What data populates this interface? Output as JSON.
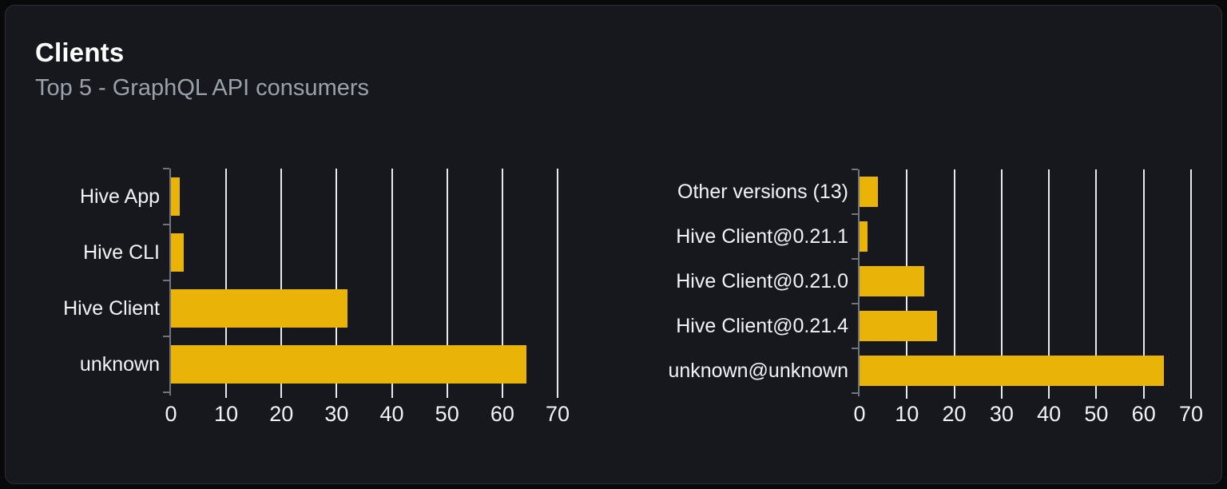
{
  "card": {
    "title": "Clients",
    "subtitle": "Top 5 - GraphQL API consumers"
  },
  "colors": {
    "bar": "#eab308",
    "grid": "#e8eaed",
    "axis": "#70747c",
    "card_bg": "#16181d",
    "card_border": "#2a2d33",
    "page_bg": "#09090b",
    "title": "#ffffff",
    "subtitle": "#9aa1ab",
    "axis_label": "#f2f3f5"
  },
  "chart_data": [
    {
      "type": "bar",
      "orientation": "horizontal",
      "categories": [
        "Hive App",
        "Hive CLI",
        "Hive Client",
        "unknown"
      ],
      "values": [
        1.6,
        2.3,
        31.9,
        64.3
      ],
      "xlim": [
        0,
        70
      ],
      "xticks": [
        0,
        10,
        20,
        30,
        40,
        50,
        60,
        70
      ],
      "grid": true,
      "legend": false
    },
    {
      "type": "bar",
      "orientation": "horizontal",
      "categories": [
        "Other versions (13)",
        "Hive Client@0.21.1",
        "Hive Client@0.21.0",
        "Hive Client@0.21.4",
        "unknown@unknown"
      ],
      "values": [
        3.9,
        1.7,
        13.7,
        16.4,
        64.3
      ],
      "xlim": [
        0,
        70
      ],
      "xticks": [
        0,
        10,
        20,
        30,
        40,
        50,
        60,
        70
      ],
      "grid": true,
      "legend": false
    }
  ]
}
